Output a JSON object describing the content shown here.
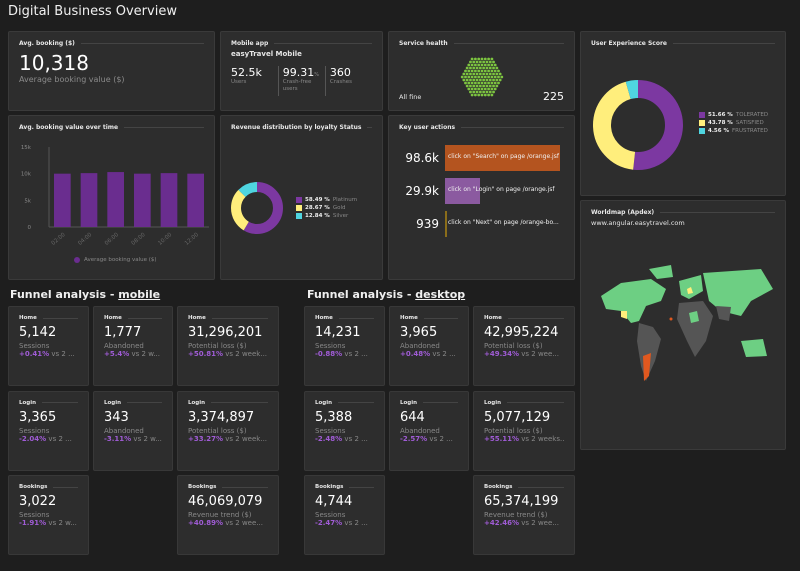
{
  "title": "Digital Business Overview",
  "avg_booking": {
    "header": "Avg. booking ($)",
    "value": "10,318",
    "label": "Average booking value ($)"
  },
  "mobile_app": {
    "header": "Mobile app",
    "app_name": "easyTravel Mobile",
    "metrics": [
      {
        "value": "52.5k",
        "unit": "",
        "label": "Users"
      },
      {
        "value": "99.31",
        "unit": "%",
        "label": "Crash-free users"
      },
      {
        "value": "360",
        "unit": "",
        "label": "Crashes"
      }
    ]
  },
  "service_health": {
    "header": "Service health",
    "status": "All fine",
    "count": "225",
    "color": "#7dc540"
  },
  "ux_score": {
    "header": "User Experience Score",
    "legend": [
      {
        "pct": "51.66 %",
        "name": "TOLERATED",
        "value": 51.66,
        "color": "#7c38a1"
      },
      {
        "pct": "43.78 %",
        "name": "SATISFIED",
        "value": 43.78,
        "color": "#ffee7c"
      },
      {
        "pct": "4.56 %",
        "name": "FRUSTRATED",
        "value": 4.56,
        "color": "#4fd5e0"
      }
    ]
  },
  "booking_chart": {
    "header": "Avg. booking value over time",
    "legend": "Average booking value ($)",
    "color": "#6a2d8f",
    "chart_data": {
      "type": "bar",
      "categories": [
        "02:00",
        "04:00",
        "06:00",
        "08:00",
        "10:00",
        "12:00"
      ],
      "values": [
        10000,
        10100,
        10300,
        10000,
        10100,
        10000
      ],
      "yticks": [
        "0",
        "5k",
        "10k",
        "15k"
      ],
      "ylim": [
        0,
        15000
      ]
    }
  },
  "revenue": {
    "header": "Revenue distribution by loyalty Status",
    "legend": [
      {
        "pct": "58.49 %",
        "name": "Platinum",
        "value": 58.49,
        "color": "#7c38a1"
      },
      {
        "pct": "28.67 %",
        "name": "Gold",
        "value": 28.67,
        "color": "#ffee7c"
      },
      {
        "pct": "12.84 %",
        "name": "Silver",
        "value": 12.84,
        "color": "#4fd5e0"
      }
    ]
  },
  "key_actions": {
    "header": "Key user actions",
    "items": [
      {
        "value": "98.6k",
        "count": 98600,
        "label": "click on \"Search\" on page /orange.jsf",
        "color": "#b4541f"
      },
      {
        "value": "29.9k",
        "count": 29900,
        "label": "click on \"Login\" on page /orange.jsf",
        "color": "#8b5aa0"
      },
      {
        "value": "939",
        "count": 939,
        "label": "click on \"Next\" on page /orange-bo...",
        "color": "#8a6d1a"
      }
    ]
  },
  "worldmap": {
    "header": "Worldmap (Apdex)",
    "site": "www.angular.easytravel.com"
  },
  "funnel_mobile": {
    "title": "Funnel analysis - ",
    "device": "mobile",
    "tiles": [
      {
        "step": "Home",
        "value": "5,142",
        "label": "Sessions",
        "change": "+0.41%",
        "vs": " vs 2 ..."
      },
      {
        "step": "Home",
        "value": "1,777",
        "label": "Abandoned",
        "change": "+5.4%",
        "vs": " vs 2 w..."
      },
      {
        "step": "Home",
        "value": "31,296,201",
        "label": "Potential loss ($)",
        "change": "+50.81%",
        "vs": " vs 2 week..."
      },
      {
        "step": "Login",
        "value": "3,365",
        "label": "Sessions",
        "change": "-2.04%",
        "vs": " vs 2 ..."
      },
      {
        "step": "Login",
        "value": "343",
        "label": "Abandoned",
        "change": "-3.11%",
        "vs": " vs 2 w..."
      },
      {
        "step": "Login",
        "value": "3,374,897",
        "label": "Potential loss ($)",
        "change": "+33.27%",
        "vs": " vs 2 week..."
      },
      {
        "step": "Bookings",
        "value": "3,022",
        "label": "Sessions",
        "change": "-1.91%",
        "vs": " vs 2 w..."
      },
      null,
      {
        "step": "Bookings",
        "value": "46,069,079",
        "label": "Revenue trend ($)",
        "change": "+40.89%",
        "vs": " vs 2 wee..."
      }
    ]
  },
  "funnel_desktop": {
    "title": "Funnel analysis - ",
    "device": "desktop",
    "tiles": [
      {
        "step": "Home",
        "value": "14,231",
        "label": "Sessions",
        "change": "-0.88%",
        "vs": " vs 2 ..."
      },
      {
        "step": "Home",
        "value": "3,965",
        "label": "Abandoned",
        "change": "+0.48%",
        "vs": " vs 2 ..."
      },
      {
        "step": "Home",
        "value": "42,995,224",
        "label": "Potential loss ($)",
        "change": "+49.34%",
        "vs": " vs 2 wee..."
      },
      {
        "step": "Login",
        "value": "5,388",
        "label": "Sessions",
        "change": "-2.48%",
        "vs": " vs 2 ..."
      },
      {
        "step": "Login",
        "value": "644",
        "label": "Abandoned",
        "change": "-2.57%",
        "vs": " vs 2 ..."
      },
      {
        "step": "Login",
        "value": "5,077,129",
        "label": "Potential loss ($)",
        "change": "+55.11%",
        "vs": " vs 2 weeks..."
      },
      {
        "step": "Bookings",
        "value": "4,744",
        "label": "Sessions",
        "change": "-2.47%",
        "vs": " vs 2 ..."
      },
      null,
      {
        "step": "Bookings",
        "value": "65,374,199",
        "label": "Revenue trend ($)",
        "change": "+42.46%",
        "vs": " vs 2 wee..."
      }
    ]
  }
}
